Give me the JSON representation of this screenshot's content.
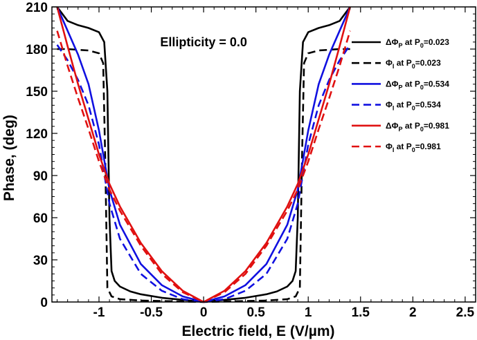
{
  "chart_data": {
    "type": "line",
    "title": "",
    "xlabel": "Electric field, E (V/µm)",
    "ylabel": "Phase, (deg)",
    "annotation": "Ellipticity = 0.0",
    "xlim": [
      -1.45,
      2.6
    ],
    "ylim": [
      0,
      210
    ],
    "x_ticks": [
      -1,
      -0.5,
      0,
      0.5,
      1,
      1.5,
      2,
      2.5
    ],
    "x_tick_labels": [
      "-1",
      "-0.5",
      "0",
      "0.5",
      "1",
      "1.5",
      "2",
      "2.5"
    ],
    "y_ticks": [
      0,
      30,
      60,
      90,
      120,
      150,
      180,
      210
    ],
    "y_tick_labels": [
      "0",
      "30",
      "60",
      "90",
      "120",
      "150",
      "180",
      "210"
    ],
    "grid": false,
    "legend_position": "top-right",
    "series": [
      {
        "label_main": "ΔΦ",
        "label_sub": "P",
        "label_mid": " at P",
        "label_sub2": "0",
        "label_tail": "=0.023",
        "color": "#000000",
        "dash": "solid",
        "x": [
          0,
          0.2,
          0.4,
          0.6,
          0.7,
          0.8,
          0.85,
          0.88,
          0.9,
          0.92,
          0.95,
          1.0,
          1.1,
          1.2,
          1.3,
          1.4
        ],
        "y": [
          0,
          1.5,
          3,
          5.5,
          7.5,
          11,
          15,
          22,
          60,
          150,
          185,
          192,
          195,
          197,
          200,
          210
        ]
      },
      {
        "label_main": "Φ",
        "label_sub": "I",
        "label_mid": " at P",
        "label_sub2": "0",
        "label_tail": "=0.023",
        "color": "#000000",
        "dash": "dashed",
        "x": [
          0,
          0.3,
          0.6,
          0.8,
          0.88,
          0.92,
          0.94,
          0.96,
          1.0,
          1.1,
          1.2,
          1.3,
          1.4
        ],
        "y": [
          0,
          0.5,
          1,
          2,
          4,
          10,
          100,
          170,
          177,
          179,
          179.5,
          180,
          180
        ]
      },
      {
        "label_main": "ΔΦ",
        "label_sub": "P",
        "label_mid": " at P",
        "label_sub2": "0",
        "label_tail": "=0.534",
        "color": "#1010e0",
        "dash": "solid",
        "x": [
          0,
          0.2,
          0.4,
          0.6,
          0.8,
          0.9,
          1.0,
          1.1,
          1.2,
          1.3,
          1.4
        ],
        "y": [
          0,
          4,
          12,
          27,
          55,
          80,
          122,
          155,
          176,
          193,
          210
        ]
      },
      {
        "label_main": "Φ",
        "label_sub": "I",
        "label_mid": " at P",
        "label_sub2": "0",
        "label_tail": "=0.534",
        "color": "#1010e0",
        "dash": "dashed",
        "x": [
          0,
          0.2,
          0.4,
          0.6,
          0.8,
          0.9,
          1.0,
          1.1,
          1.2,
          1.3,
          1.4
        ],
        "y": [
          0,
          2,
          8,
          20,
          45,
          70,
          112,
          140,
          158,
          172,
          183
        ]
      },
      {
        "label_main": "ΔΦ",
        "label_sub": "P",
        "label_mid": " at P",
        "label_sub2": "0",
        "label_tail": "=0.981",
        "color": "#e01010",
        "dash": "solid",
        "x": [
          0,
          0.2,
          0.4,
          0.6,
          0.8,
          0.9,
          1.0,
          1.1,
          1.2,
          1.3,
          1.4
        ],
        "y": [
          0,
          8,
          22,
          42,
          68,
          84,
          105,
          130,
          155,
          182,
          210
        ]
      },
      {
        "label_main": "Φ",
        "label_sub": "I",
        "label_mid": " at P",
        "label_sub2": "0",
        "label_tail": "=0.981",
        "color": "#e01010",
        "dash": "dashed",
        "x": [
          0,
          0.2,
          0.4,
          0.6,
          0.8,
          0.9,
          1.0,
          1.1,
          1.2,
          1.3,
          1.4
        ],
        "y": [
          0,
          7,
          20,
          40,
          65,
          80,
          100,
          123,
          145,
          168,
          193
        ]
      }
    ]
  }
}
